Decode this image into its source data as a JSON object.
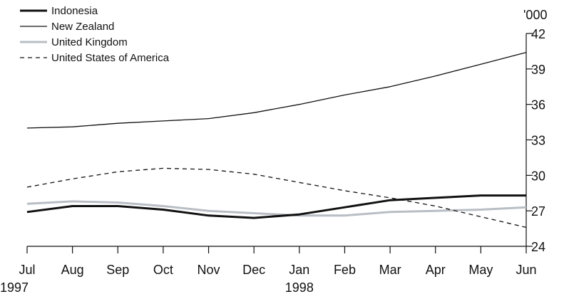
{
  "chart_data": {
    "type": "line",
    "x": [
      "Jul",
      "Aug",
      "Sep",
      "Oct",
      "Nov",
      "Dec",
      "Jan",
      "Feb",
      "Mar",
      "Apr",
      "May",
      "Jun"
    ],
    "year_labels": [
      {
        "at": "Jul",
        "text": "1997"
      },
      {
        "at": "Jan",
        "text": "1998"
      }
    ],
    "y_unit_label": "'000",
    "ylim": [
      24,
      42
    ],
    "yticks": [
      24,
      27,
      30,
      33,
      36,
      39,
      42
    ],
    "grid": false,
    "legend_position": "top-left",
    "series": [
      {
        "name": "Indonesia",
        "style": "thick",
        "color": "#111111",
        "values": [
          26.9,
          27.4,
          27.4,
          27.1,
          26.6,
          26.4,
          26.7,
          27.3,
          27.9,
          28.1,
          28.3,
          28.3
        ]
      },
      {
        "name": "New Zealand",
        "style": "thin",
        "color": "#111111",
        "values": [
          34.0,
          34.1,
          34.4,
          34.6,
          34.8,
          35.3,
          36.0,
          36.8,
          37.5,
          38.4,
          39.4,
          40.4
        ]
      },
      {
        "name": "United Kingdom",
        "style": "grey",
        "color": "#b8bec4",
        "values": [
          27.6,
          27.8,
          27.7,
          27.4,
          27.0,
          26.8,
          26.6,
          26.6,
          26.9,
          27.0,
          27.1,
          27.3
        ]
      },
      {
        "name": "United States of America",
        "style": "dashed",
        "color": "#111111",
        "values": [
          29.0,
          29.7,
          30.3,
          30.6,
          30.5,
          30.1,
          29.4,
          28.7,
          28.1,
          27.4,
          26.5,
          25.6
        ]
      }
    ]
  }
}
